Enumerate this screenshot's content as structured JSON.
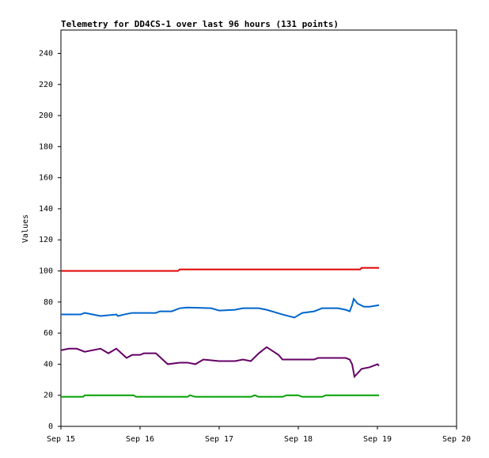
{
  "chart_data": {
    "type": "line",
    "title": "Telemetry for DD4CS-1 over last 96 hours (131 points)",
    "y_label": "Values",
    "xlim": [
      0,
      5
    ],
    "xticks": [
      {
        "value": 0,
        "label": "Sep 15"
      },
      {
        "value": 1,
        "label": "Sep 16"
      },
      {
        "value": 2,
        "label": "Sep 17"
      },
      {
        "value": 3,
        "label": "Sep 18"
      },
      {
        "value": 4,
        "label": "Sep 19"
      },
      {
        "value": 5,
        "label": "Sep 20"
      }
    ],
    "ylim": [
      0,
      255
    ],
    "yticks": [
      0,
      20,
      40,
      60,
      80,
      100,
      120,
      140,
      160,
      180,
      200,
      220,
      240
    ],
    "series": [
      {
        "color": "#e00000",
        "x": [
          0,
          1.48,
          1.5,
          3.78,
          3.8,
          4.02
        ],
        "values": [
          100,
          100,
          101,
          101,
          102,
          102
        ]
      },
      {
        "color": "#0066cc",
        "x": [
          0,
          0.25,
          0.3,
          0.4,
          0.5,
          0.7,
          0.72,
          0.8,
          0.9,
          1.2,
          1.25,
          1.4,
          1.5,
          1.6,
          1.9,
          2.0,
          2.2,
          2.3,
          2.5,
          2.6,
          2.8,
          2.95,
          3.05,
          3.2,
          3.25,
          3.3,
          3.5,
          3.6,
          3.65,
          3.68,
          3.7,
          3.75,
          3.83,
          3.9,
          4.02
        ],
        "values": [
          72,
          72,
          73,
          72,
          71,
          72,
          71,
          72,
          73,
          73,
          74,
          74,
          76,
          76.5,
          76,
          74.5,
          75,
          76,
          76,
          75,
          72,
          70,
          73,
          74,
          75,
          76,
          76,
          75,
          74,
          78,
          82,
          79,
          77,
          77,
          78
        ]
      },
      {
        "color": "#660066",
        "x": [
          0,
          0.1,
          0.2,
          0.3,
          0.5,
          0.6,
          0.7,
          0.83,
          0.9,
          1.0,
          1.05,
          1.2,
          1.35,
          1.5,
          1.6,
          1.7,
          1.8,
          2.0,
          2.2,
          2.3,
          2.4,
          2.5,
          2.6,
          2.75,
          2.8,
          3.2,
          3.25,
          3.6,
          3.65,
          3.68,
          3.71,
          3.8,
          3.9,
          4.0,
          4.02
        ],
        "values": [
          49,
          50,
          50,
          48,
          50,
          47,
          50,
          44,
          46,
          46,
          47,
          47,
          40,
          41,
          41,
          40,
          43,
          42,
          42,
          43,
          42,
          47,
          51,
          46,
          43,
          43,
          44,
          44,
          43,
          40,
          32,
          37,
          38,
          40,
          39
        ]
      },
      {
        "color": "#00a000",
        "x": [
          0,
          0.28,
          0.3,
          0.92,
          0.95,
          1.6,
          1.63,
          1.7,
          2.4,
          2.45,
          2.5,
          2.8,
          2.85,
          3.0,
          3.05,
          3.3,
          3.35,
          4.02
        ],
        "values": [
          19,
          19,
          20,
          20,
          19,
          19,
          20,
          19,
          19,
          20,
          19,
          19,
          20,
          20,
          19,
          19,
          20,
          20
        ]
      }
    ]
  }
}
